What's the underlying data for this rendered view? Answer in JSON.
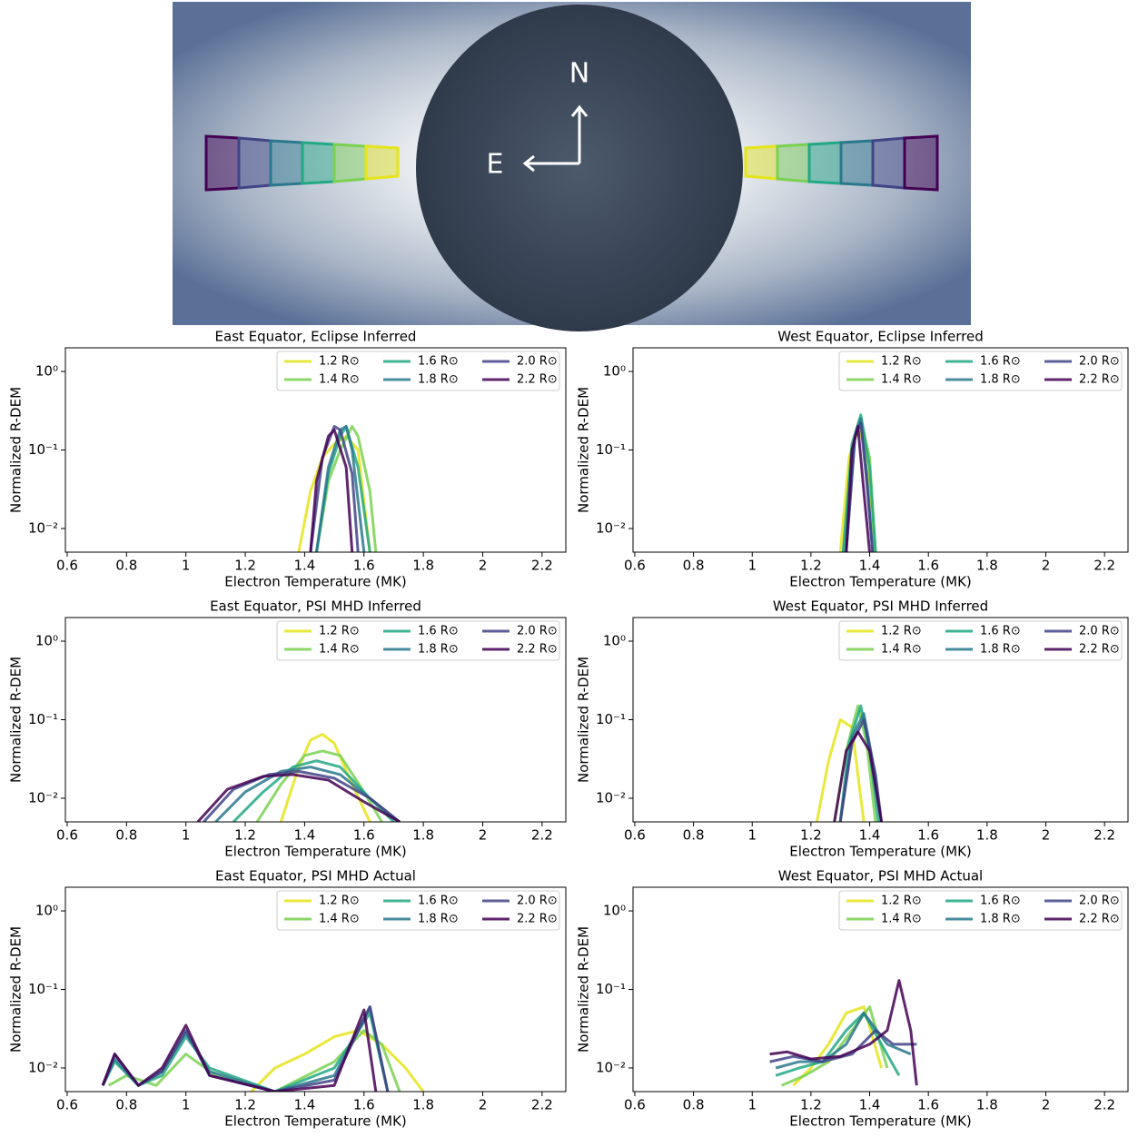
{
  "image": {
    "labels": {
      "north": "N",
      "east": "E"
    }
  },
  "chart_data": [
    {
      "type": "line",
      "title": "East Equator, Eclipse Inferred",
      "xlabel": "Electron Temperature (MK)",
      "ylabel": "Normalized R-DEM",
      "log_y": true,
      "legend": "upper right",
      "xlim": [
        0.594,
        2.28
      ],
      "xticks": [
        0.6,
        0.8,
        1.0,
        1.2,
        1.4,
        1.6,
        1.8,
        2.0,
        2.2
      ],
      "ylim": [
        0.005,
        2
      ],
      "yticks": [
        {
          "value": 1,
          "label": "10⁰"
        },
        {
          "value": 0.1,
          "label": "10⁻¹"
        },
        {
          "value": 0.01,
          "label": "10⁻²"
        }
      ],
      "series": [
        {
          "name": "1.2 R⊙",
          "color": "#e5e419",
          "x": [
            1.38,
            1.42,
            1.46,
            1.5,
            1.54,
            1.58,
            1.62
          ],
          "values": [
            0.005,
            0.03,
            0.08,
            0.12,
            0.15,
            0.1,
            0.005
          ]
        },
        {
          "name": "1.4 R⊙",
          "color": "#7ad151",
          "x": [
            1.44,
            1.48,
            1.52,
            1.56,
            1.58,
            1.62,
            1.64
          ],
          "values": [
            0.005,
            0.04,
            0.1,
            0.2,
            0.15,
            0.03,
            0.005
          ]
        },
        {
          "name": "1.6 R⊙",
          "color": "#22a884",
          "x": [
            1.44,
            1.48,
            1.52,
            1.54,
            1.58,
            1.62
          ],
          "values": [
            0.005,
            0.05,
            0.15,
            0.2,
            0.06,
            0.005
          ]
        },
        {
          "name": "1.8 R⊙",
          "color": "#2a788e",
          "x": [
            1.44,
            1.48,
            1.52,
            1.54,
            1.56,
            1.6
          ],
          "values": [
            0.005,
            0.06,
            0.18,
            0.2,
            0.1,
            0.005
          ]
        },
        {
          "name": "2.0 R⊙",
          "color": "#414487",
          "x": [
            1.42,
            1.46,
            1.5,
            1.52,
            1.56,
            1.58
          ],
          "values": [
            0.005,
            0.08,
            0.2,
            0.18,
            0.05,
            0.005
          ]
        },
        {
          "name": "2.2 R⊙",
          "color": "#440154",
          "x": [
            1.42,
            1.44,
            1.48,
            1.5,
            1.54,
            1.56
          ],
          "values": [
            0.005,
            0.04,
            0.15,
            0.18,
            0.06,
            0.005
          ]
        }
      ]
    },
    {
      "type": "line",
      "title": "West Equator, Eclipse Inferred",
      "xlabel": "Electron Temperature (MK)",
      "ylabel": "Normalized R-DEM",
      "log_y": true,
      "legend": "upper right",
      "xlim": [
        0.594,
        2.28
      ],
      "xticks": [
        0.6,
        0.8,
        1.0,
        1.2,
        1.4,
        1.6,
        1.8,
        2.0,
        2.2
      ],
      "ylim": [
        0.005,
        2
      ],
      "yticks": [
        {
          "value": 1,
          "label": "10⁰"
        },
        {
          "value": 0.1,
          "label": "10⁻¹"
        },
        {
          "value": 0.01,
          "label": "10⁻²"
        }
      ],
      "series": [
        {
          "name": "1.2 R⊙",
          "color": "#e5e419",
          "x": [
            1.3,
            1.33,
            1.36,
            1.39,
            1.42
          ],
          "values": [
            0.005,
            0.08,
            0.2,
            0.1,
            0.005
          ]
        },
        {
          "name": "1.4 R⊙",
          "color": "#7ad151",
          "x": [
            1.31,
            1.34,
            1.37,
            1.4,
            1.42
          ],
          "values": [
            0.005,
            0.1,
            0.25,
            0.08,
            0.005
          ]
        },
        {
          "name": "1.6 R⊙",
          "color": "#22a884",
          "x": [
            1.31,
            1.34,
            1.37,
            1.4,
            1.42
          ],
          "values": [
            0.005,
            0.12,
            0.28,
            0.06,
            0.005
          ]
        },
        {
          "name": "1.8 R⊙",
          "color": "#2a788e",
          "x": [
            1.32,
            1.35,
            1.37,
            1.39,
            1.41
          ],
          "values": [
            0.005,
            0.15,
            0.25,
            0.05,
            0.005
          ]
        },
        {
          "name": "2.0 R⊙",
          "color": "#414487",
          "x": [
            1.32,
            1.35,
            1.37,
            1.39,
            1.41
          ],
          "values": [
            0.005,
            0.15,
            0.22,
            0.04,
            0.005
          ]
        },
        {
          "name": "2.2 R⊙",
          "color": "#440154",
          "x": [
            1.32,
            1.34,
            1.36,
            1.38,
            1.4
          ],
          "values": [
            0.005,
            0.1,
            0.2,
            0.03,
            0.005
          ]
        }
      ]
    },
    {
      "type": "line",
      "title": "East Equator, PSI MHD Inferred",
      "xlabel": "Electron Temperature (MK)",
      "ylabel": "Normalized R-DEM",
      "log_y": true,
      "legend": "upper right",
      "xlim": [
        0.594,
        2.28
      ],
      "xticks": [
        0.6,
        0.8,
        1.0,
        1.2,
        1.4,
        1.6,
        1.8,
        2.0,
        2.2
      ],
      "ylim": [
        0.005,
        2
      ],
      "yticks": [
        {
          "value": 1,
          "label": "10⁰"
        },
        {
          "value": 0.1,
          "label": "10⁻¹"
        },
        {
          "value": 0.01,
          "label": "10⁻²"
        }
      ],
      "series": [
        {
          "name": "1.2 R⊙",
          "color": "#e5e419",
          "x": [
            1.32,
            1.38,
            1.42,
            1.46,
            1.5,
            1.56,
            1.62
          ],
          "values": [
            0.005,
            0.025,
            0.055,
            0.065,
            0.05,
            0.015,
            0.005
          ]
        },
        {
          "name": "1.4 R⊙",
          "color": "#7ad151",
          "x": [
            1.24,
            1.32,
            1.4,
            1.46,
            1.52,
            1.6,
            1.66
          ],
          "values": [
            0.005,
            0.015,
            0.035,
            0.04,
            0.035,
            0.012,
            0.005
          ]
        },
        {
          "name": "1.6 R⊙",
          "color": "#22a884",
          "x": [
            1.16,
            1.26,
            1.36,
            1.44,
            1.52,
            1.62,
            1.7
          ],
          "values": [
            0.005,
            0.012,
            0.025,
            0.03,
            0.025,
            0.01,
            0.005
          ]
        },
        {
          "name": "1.8 R⊙",
          "color": "#2a788e",
          "x": [
            1.1,
            1.2,
            1.32,
            1.42,
            1.52,
            1.62,
            1.72
          ],
          "values": [
            0.005,
            0.012,
            0.022,
            0.025,
            0.02,
            0.01,
            0.005
          ]
        },
        {
          "name": "2.0 R⊙",
          "color": "#414487",
          "x": [
            1.06,
            1.16,
            1.28,
            1.38,
            1.5,
            1.62,
            1.72
          ],
          "values": [
            0.005,
            0.013,
            0.02,
            0.022,
            0.018,
            0.01,
            0.005
          ]
        },
        {
          "name": "2.2 R⊙",
          "color": "#440154",
          "x": [
            1.04,
            1.14,
            1.26,
            1.36,
            1.48,
            1.6,
            1.72
          ],
          "values": [
            0.005,
            0.013,
            0.019,
            0.02,
            0.017,
            0.009,
            0.005
          ]
        }
      ]
    },
    {
      "type": "line",
      "title": "West Equator, PSI MHD Inferred",
      "xlabel": "Electron Temperature (MK)",
      "ylabel": "Normalized R-DEM",
      "log_y": true,
      "legend": "upper right",
      "xlim": [
        0.594,
        2.28
      ],
      "xticks": [
        0.6,
        0.8,
        1.0,
        1.2,
        1.4,
        1.6,
        1.8,
        2.0,
        2.2
      ],
      "ylim": [
        0.005,
        2
      ],
      "yticks": [
        {
          "value": 1,
          "label": "10⁰"
        },
        {
          "value": 0.1,
          "label": "10⁻¹"
        },
        {
          "value": 0.01,
          "label": "10⁻²"
        }
      ],
      "series": [
        {
          "name": "1.2 R⊙",
          "color": "#e5e419",
          "x": [
            1.22,
            1.26,
            1.3,
            1.34,
            1.38
          ],
          "values": [
            0.005,
            0.03,
            0.1,
            0.08,
            0.005
          ]
        },
        {
          "name": "1.4 R⊙",
          "color": "#7ad151",
          "x": [
            1.28,
            1.32,
            1.36,
            1.39,
            1.42
          ],
          "values": [
            0.005,
            0.04,
            0.15,
            0.05,
            0.005
          ]
        },
        {
          "name": "1.6 R⊙",
          "color": "#22a884",
          "x": [
            1.3,
            1.33,
            1.37,
            1.4,
            1.43
          ],
          "values": [
            0.005,
            0.05,
            0.15,
            0.04,
            0.005
          ]
        },
        {
          "name": "1.8 R⊙",
          "color": "#2a788e",
          "x": [
            1.3,
            1.34,
            1.38,
            1.41,
            1.44
          ],
          "values": [
            0.005,
            0.06,
            0.12,
            0.03,
            0.005
          ]
        },
        {
          "name": "2.0 R⊙",
          "color": "#414487",
          "x": [
            1.3,
            1.34,
            1.38,
            1.42,
            1.44
          ],
          "values": [
            0.005,
            0.05,
            0.1,
            0.02,
            0.005
          ]
        },
        {
          "name": "2.2 R⊙",
          "color": "#440154",
          "x": [
            1.28,
            1.32,
            1.36,
            1.4,
            1.44
          ],
          "values": [
            0.005,
            0.04,
            0.07,
            0.04,
            0.005
          ]
        }
      ]
    },
    {
      "type": "line",
      "title": "East Equator, PSI MHD Actual",
      "xlabel": "Electron Temperature (MK)",
      "ylabel": "Normalized R-DEM",
      "log_y": true,
      "legend": "upper right",
      "xlim": [
        0.594,
        2.28
      ],
      "xticks": [
        0.6,
        0.8,
        1.0,
        1.2,
        1.4,
        1.6,
        1.8,
        2.0,
        2.2
      ],
      "ylim": [
        0.005,
        2
      ],
      "yticks": [
        {
          "value": 1,
          "label": "10⁰"
        },
        {
          "value": 0.1,
          "label": "10⁻¹"
        },
        {
          "value": 0.01,
          "label": "10⁻²"
        }
      ],
      "series": [
        {
          "name": "1.2 R⊙",
          "color": "#e5e419",
          "x": [
            1.22,
            1.3,
            1.4,
            1.5,
            1.58,
            1.66,
            1.74,
            1.8
          ],
          "values": [
            0.005,
            0.01,
            0.015,
            0.025,
            0.03,
            0.02,
            0.01,
            0.005
          ]
        },
        {
          "name": "1.4 R⊙",
          "color": "#7ad151",
          "x": [
            0.74,
            0.8,
            0.9,
            1.0,
            1.1,
            1.3,
            1.5,
            1.6,
            1.66,
            1.72
          ],
          "values": [
            0.006,
            0.008,
            0.006,
            0.015,
            0.008,
            0.005,
            0.012,
            0.03,
            0.02,
            0.005
          ]
        },
        {
          "name": "1.6 R⊙",
          "color": "#22a884",
          "x": [
            0.72,
            0.76,
            0.84,
            0.92,
            1.0,
            1.08,
            1.3,
            1.5,
            1.62,
            1.68
          ],
          "values": [
            0.006,
            0.012,
            0.006,
            0.008,
            0.025,
            0.01,
            0.005,
            0.01,
            0.05,
            0.005
          ]
        },
        {
          "name": "1.8 R⊙",
          "color": "#2a788e",
          "x": [
            0.72,
            0.76,
            0.84,
            0.92,
            1.0,
            1.08,
            1.3,
            1.5,
            1.62,
            1.68
          ],
          "values": [
            0.006,
            0.013,
            0.006,
            0.009,
            0.028,
            0.009,
            0.005,
            0.008,
            0.06,
            0.005
          ]
        },
        {
          "name": "2.0 R⊙",
          "color": "#414487",
          "x": [
            0.72,
            0.76,
            0.84,
            0.92,
            1.0,
            1.08,
            1.3,
            1.5,
            1.62,
            1.68
          ],
          "values": [
            0.006,
            0.015,
            0.006,
            0.009,
            0.03,
            0.008,
            0.005,
            0.007,
            0.06,
            0.005
          ]
        },
        {
          "name": "2.2 R⊙",
          "color": "#440154",
          "x": [
            0.72,
            0.76,
            0.84,
            0.92,
            1.0,
            1.08,
            1.3,
            1.5,
            1.6,
            1.64
          ],
          "values": [
            0.006,
            0.015,
            0.006,
            0.01,
            0.035,
            0.008,
            0.005,
            0.006,
            0.055,
            0.005
          ]
        }
      ]
    },
    {
      "type": "line",
      "title": "West Equator, PSI MHD Actual",
      "xlabel": "Electron Temperature (MK)",
      "ylabel": "Normalized R-DEM",
      "log_y": true,
      "legend": "upper right",
      "xlim": [
        0.594,
        2.28
      ],
      "xticks": [
        0.6,
        0.8,
        1.0,
        1.2,
        1.4,
        1.6,
        1.8,
        2.0,
        2.2
      ],
      "ylim": [
        0.005,
        2
      ],
      "yticks": [
        {
          "value": 1,
          "label": "10⁰"
        },
        {
          "value": 0.1,
          "label": "10⁻¹"
        },
        {
          "value": 0.01,
          "label": "10⁻²"
        }
      ],
      "series": [
        {
          "name": "1.2 R⊙",
          "color": "#e5e419",
          "x": [
            1.14,
            1.2,
            1.26,
            1.32,
            1.38,
            1.44
          ],
          "values": [
            0.006,
            0.01,
            0.02,
            0.05,
            0.06,
            0.01
          ]
        },
        {
          "name": "1.4 R⊙",
          "color": "#7ad151",
          "x": [
            1.1,
            1.18,
            1.26,
            1.34,
            1.4,
            1.46
          ],
          "values": [
            0.006,
            0.008,
            0.012,
            0.03,
            0.06,
            0.01
          ]
        },
        {
          "name": "1.6 R⊙",
          "color": "#22a884",
          "x": [
            1.08,
            1.16,
            1.24,
            1.32,
            1.38,
            1.44,
            1.5
          ],
          "values": [
            0.008,
            0.01,
            0.012,
            0.03,
            0.05,
            0.02,
            0.008
          ]
        },
        {
          "name": "1.8 R⊙",
          "color": "#2a788e",
          "x": [
            1.08,
            1.16,
            1.24,
            1.32,
            1.38,
            1.46,
            1.54
          ],
          "values": [
            0.01,
            0.012,
            0.012,
            0.02,
            0.05,
            0.02,
            0.015
          ]
        },
        {
          "name": "2.0 R⊙",
          "color": "#414487",
          "x": [
            1.06,
            1.14,
            1.24,
            1.34,
            1.42,
            1.48,
            1.56
          ],
          "values": [
            0.012,
            0.014,
            0.012,
            0.015,
            0.03,
            0.02,
            0.02
          ]
        },
        {
          "name": "2.2 R⊙",
          "color": "#440154",
          "x": [
            1.06,
            1.12,
            1.2,
            1.3,
            1.4,
            1.46,
            1.5,
            1.54,
            1.56
          ],
          "values": [
            0.015,
            0.016,
            0.013,
            0.014,
            0.02,
            0.03,
            0.13,
            0.03,
            0.006
          ]
        }
      ]
    }
  ]
}
